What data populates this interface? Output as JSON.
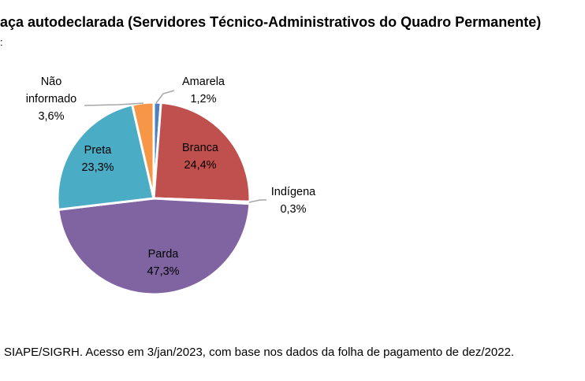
{
  "chart_data": {
    "type": "pie",
    "title": "aça autodeclarada (Servidores Técnico-Administrativos do Quadro Permanente)",
    "subtitle": ":",
    "slices": [
      {
        "label": "Amarela",
        "value_label": "1,2%",
        "value": 1.2,
        "color": "#4F81BD"
      },
      {
        "label": "Branca",
        "value_label": "24,4%",
        "value": 24.4,
        "color": "#C0504D"
      },
      {
        "label": "Indígena",
        "value_label": "0,3%",
        "value": 0.3,
        "color": "#9BBB59"
      },
      {
        "label": "Parda",
        "value_label": "47,3%",
        "value": 47.3,
        "color": "#8064A2"
      },
      {
        "label": "Preta",
        "value_label": "23,3%",
        "value": 23.3,
        "color": "#4BACC6"
      },
      {
        "label": "Não informado",
        "value_label": "3,6%",
        "value": 3.6,
        "color": "#F79646"
      }
    ],
    "legend": "none",
    "labels": "data labels (category name and percentage)"
  },
  "source_note": "SIAPE/SIGRH. Acesso em 3/jan/2023, com base nos dados da folha de pagamento de dez/2022."
}
